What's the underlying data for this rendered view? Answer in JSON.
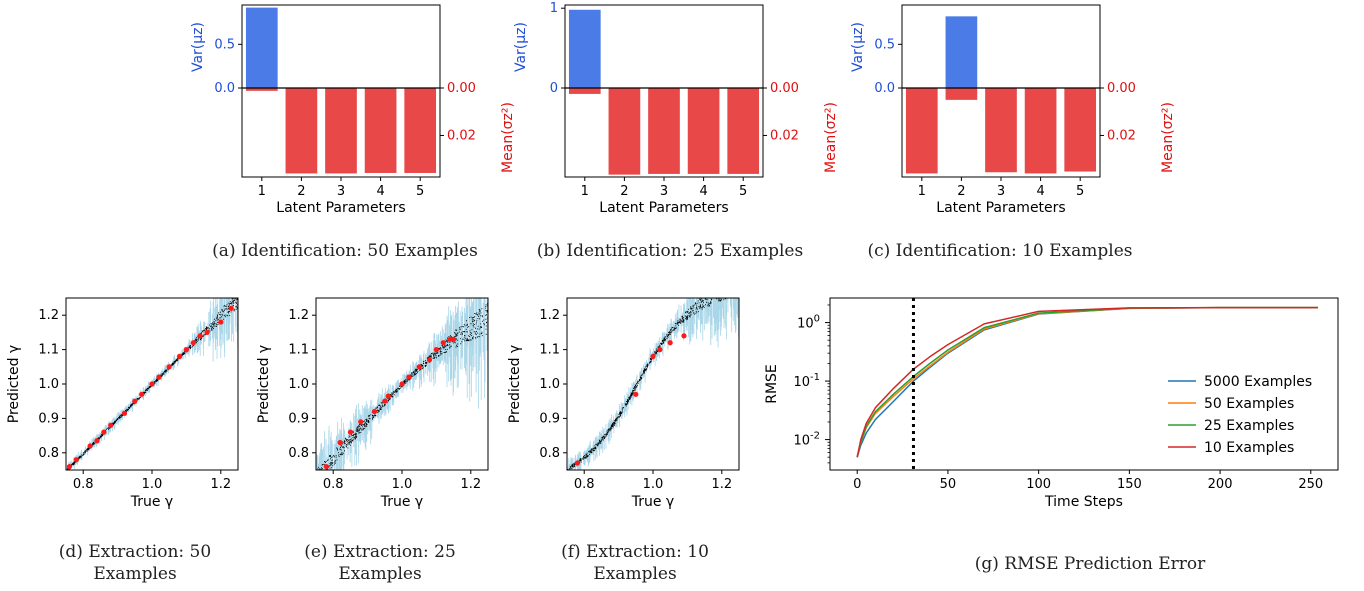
{
  "captions": {
    "a": "(a) Identification: 50 Examples",
    "b": "(b) Identification: 25 Examples",
    "c": "(c) Identification: 10 Examples",
    "d1": "(d) Extraction: 50",
    "d2": "Examples",
    "e1": "(e) Extraction: 25",
    "e2": "Examples",
    "f1": "(f) Extraction: 10",
    "f2": "Examples",
    "g": "(g) RMSE Prediction Error"
  },
  "colors": {
    "var_bar": "#4a7be6",
    "mean_bar": "#e84848",
    "scatter_band": "#a9d6e8",
    "scatter_black": "#000000",
    "scatter_red": "#ff1a1a",
    "line_5000": "#1f77b4",
    "line_50": "#ff7f0e",
    "line_25": "#2ca02c",
    "line_10": "#d62728"
  },
  "chart_data": [
    {
      "type": "bar",
      "panel": "a",
      "categories": [
        "1",
        "2",
        "3",
        "4",
        "5"
      ],
      "xlabel": "Latent Parameters",
      "ylabel_left": "Var(μz)",
      "ylabel_right": "Mean(σz²)",
      "var_ticks": [
        "0.0",
        "0.5"
      ],
      "mean_ticks": [
        "0.00",
        "0.02"
      ],
      "var_ylim": [
        0,
        0.95
      ],
      "mean_ylim": [
        0,
        0.0375
      ],
      "var_values": [
        0.92,
        0,
        0,
        0,
        0
      ],
      "mean_values": [
        0.0012,
        0.036,
        0.036,
        0.0358,
        0.0358
      ]
    },
    {
      "type": "bar",
      "panel": "b",
      "categories": [
        "1",
        "2",
        "3",
        "4",
        "5"
      ],
      "xlabel": "Latent Parameters",
      "ylabel_left": "Var(μz)",
      "ylabel_right": "Mean(σz²)",
      "var_ticks": [
        "0",
        "1"
      ],
      "mean_ticks": [
        "0.00",
        "0.02"
      ],
      "var_ylim": [
        0,
        1.04
      ],
      "mean_ylim": [
        0,
        0.0375
      ],
      "var_values": [
        0.98,
        0,
        0,
        0,
        0
      ],
      "mean_values": [
        0.0025,
        0.0365,
        0.0362,
        0.0362,
        0.0362
      ]
    },
    {
      "type": "bar",
      "panel": "c",
      "categories": [
        "1",
        "2",
        "3",
        "4",
        "5"
      ],
      "xlabel": "Latent Parameters",
      "ylabel_left": "Var(μz)",
      "ylabel_right": "Mean(σz²)",
      "var_ticks": [
        "0.0",
        "0.5"
      ],
      "mean_ticks": [
        "0.00",
        "0.02"
      ],
      "var_ylim": [
        0,
        0.95
      ],
      "mean_ylim": [
        0,
        0.0375
      ],
      "var_values": [
        0,
        0.82,
        0,
        0,
        0
      ],
      "mean_values": [
        0.036,
        0.005,
        0.0355,
        0.036,
        0.0352
      ]
    },
    {
      "type": "scatter",
      "panel": "d",
      "xlabel": "True γ",
      "ylabel": "Predicted γ",
      "xlim": [
        0.75,
        1.25
      ],
      "ylim": [
        0.75,
        1.25
      ],
      "xticks": [
        "0.8",
        "1.0",
        "1.2"
      ],
      "yticks": [
        "0.8",
        "0.9",
        "1.0",
        "1.1",
        "1.2"
      ],
      "red_points": [
        [
          0.76,
          0.76
        ],
        [
          0.78,
          0.78
        ],
        [
          0.82,
          0.82
        ],
        [
          0.84,
          0.835
        ],
        [
          0.86,
          0.86
        ],
        [
          0.88,
          0.88
        ],
        [
          0.92,
          0.915
        ],
        [
          0.95,
          0.95
        ],
        [
          0.97,
          0.97
        ],
        [
          1.0,
          1.0
        ],
        [
          1.02,
          1.02
        ],
        [
          1.05,
          1.05
        ],
        [
          1.08,
          1.08
        ],
        [
          1.1,
          1.1
        ],
        [
          1.12,
          1.12
        ],
        [
          1.14,
          1.14
        ],
        [
          1.16,
          1.15
        ],
        [
          1.2,
          1.18
        ],
        [
          1.23,
          1.22
        ]
      ]
    },
    {
      "type": "scatter",
      "panel": "e",
      "xlabel": "True γ",
      "ylabel": "Predicted γ",
      "xlim": [
        0.75,
        1.25
      ],
      "ylim": [
        0.75,
        1.25
      ],
      "xticks": [
        "0.8",
        "1.0",
        "1.2"
      ],
      "yticks": [
        "0.8",
        "0.9",
        "1.0",
        "1.1",
        "1.2"
      ],
      "red_points": [
        [
          0.78,
          0.76
        ],
        [
          0.82,
          0.83
        ],
        [
          0.85,
          0.86
        ],
        [
          0.88,
          0.89
        ],
        [
          0.92,
          0.92
        ],
        [
          0.95,
          0.95
        ],
        [
          0.96,
          0.965
        ],
        [
          1.0,
          1.0
        ],
        [
          1.02,
          1.02
        ],
        [
          1.05,
          1.05
        ],
        [
          1.08,
          1.07
        ],
        [
          1.1,
          1.1
        ],
        [
          1.12,
          1.12
        ],
        [
          1.14,
          1.13
        ],
        [
          1.15,
          1.13
        ]
      ]
    },
    {
      "type": "scatter",
      "panel": "f",
      "xlabel": "True γ",
      "ylabel": "Predicted γ",
      "xlim": [
        0.75,
        1.25
      ],
      "ylim": [
        0.75,
        1.25
      ],
      "xticks": [
        "0.8",
        "1.0",
        "1.2"
      ],
      "yticks": [
        "0.8",
        "0.9",
        "1.0",
        "1.1",
        "1.2"
      ],
      "red_points": [
        [
          0.78,
          0.77
        ],
        [
          0.95,
          0.97
        ],
        [
          1.0,
          1.08
        ],
        [
          1.02,
          1.1
        ],
        [
          1.05,
          1.12
        ],
        [
          1.09,
          1.14
        ]
      ]
    },
    {
      "type": "line",
      "panel": "g",
      "xlabel": "Time Steps",
      "ylabel": "RMSE",
      "xlim": [
        -15,
        265
      ],
      "ylim_log10": [
        -2.52,
        0.42
      ],
      "xticks": [
        "0",
        "50",
        "100",
        "150",
        "200",
        "250"
      ],
      "ytick_labels": [
        [
          "10",
          "-2"
        ],
        [
          "10",
          "-1"
        ],
        [
          "10",
          "0"
        ]
      ],
      "vline_x": 31,
      "series": [
        {
          "name": "5000 Examples",
          "x": [
            0,
            2,
            5,
            10,
            20,
            31,
            40,
            50,
            70,
            100,
            150,
            200,
            254
          ],
          "y": [
            0.005,
            0.008,
            0.013,
            0.022,
            0.045,
            0.1,
            0.17,
            0.3,
            0.75,
            1.4,
            1.75,
            1.8,
            1.8
          ]
        },
        {
          "name": "50 Examples",
          "x": [
            0,
            2,
            5,
            10,
            20,
            31,
            40,
            50,
            70,
            100,
            150,
            200,
            254
          ],
          "y": [
            0.005,
            0.009,
            0.016,
            0.028,
            0.055,
            0.11,
            0.18,
            0.31,
            0.78,
            1.42,
            1.76,
            1.8,
            1.8
          ]
        },
        {
          "name": "25 Examples",
          "x": [
            0,
            2,
            5,
            10,
            20,
            31,
            40,
            50,
            70,
            100,
            150,
            200,
            254
          ],
          "y": [
            0.005,
            0.009,
            0.017,
            0.03,
            0.06,
            0.12,
            0.2,
            0.34,
            0.82,
            1.45,
            1.77,
            1.8,
            1.8
          ]
        },
        {
          "name": "10 Examples",
          "x": [
            0,
            2,
            5,
            10,
            20,
            31,
            40,
            50,
            70,
            100,
            150,
            200,
            254
          ],
          "y": [
            0.005,
            0.01,
            0.019,
            0.035,
            0.075,
            0.16,
            0.26,
            0.42,
            0.95,
            1.55,
            1.78,
            1.8,
            1.8
          ]
        }
      ]
    }
  ]
}
